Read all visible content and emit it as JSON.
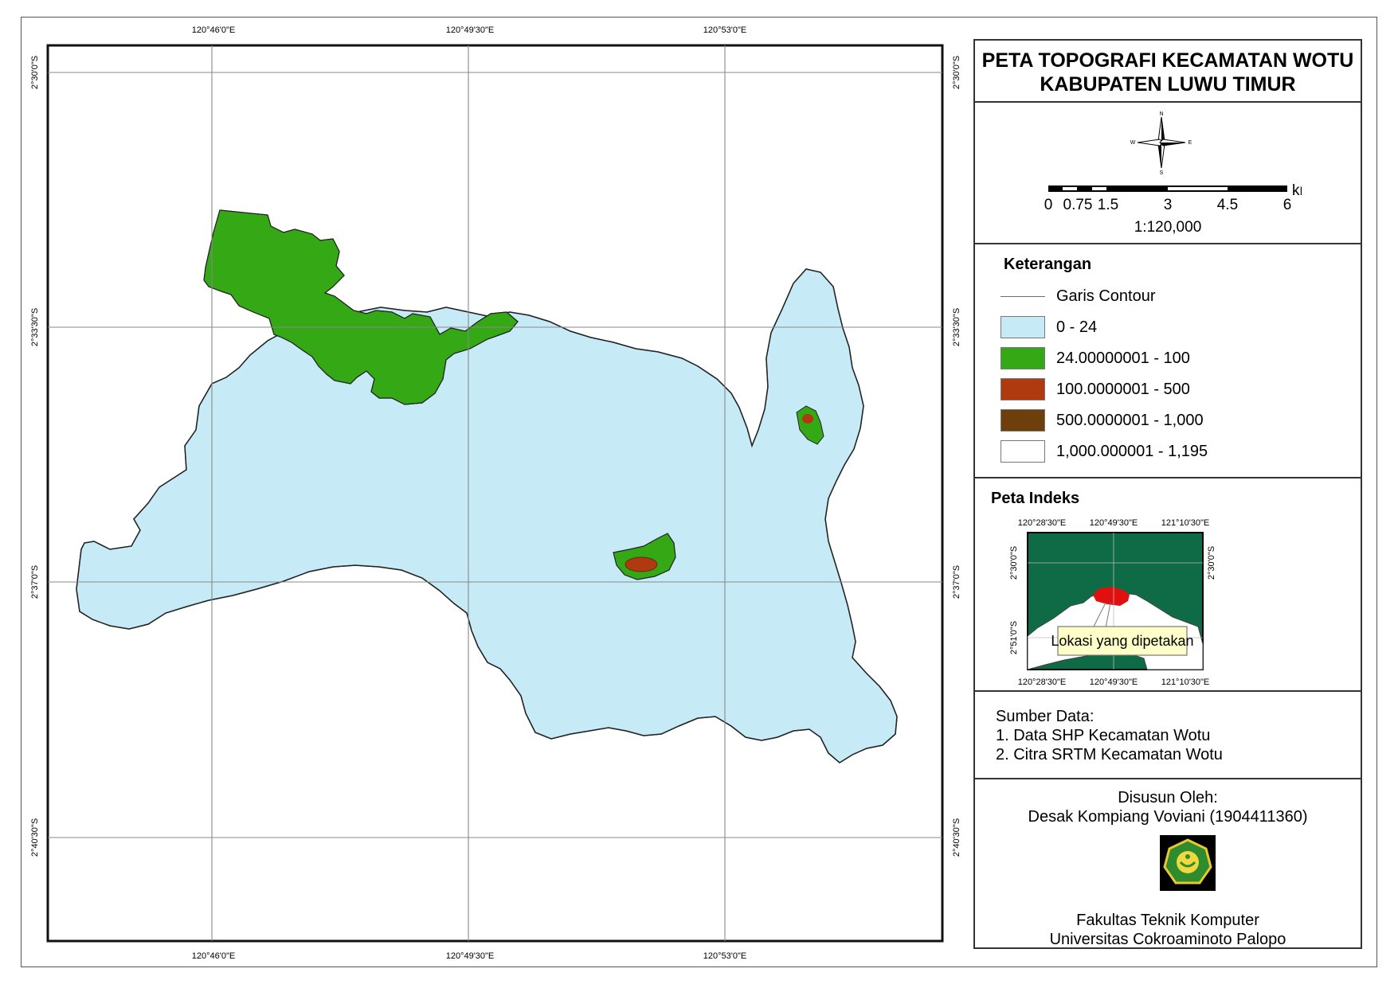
{
  "map": {
    "top_labels": [
      "120°46'0\"E",
      "120°49'30\"E",
      "120°53'0\"E"
    ],
    "bottom_labels": [
      "120°46'0\"E",
      "120°49'30\"E",
      "120°53'0\"E"
    ],
    "left_labels": [
      "2°30'0\"S",
      "2°33'30\"S",
      "2°37'0\"S",
      "2°40'30\"S"
    ],
    "right_labels": [
      "2°30'0\"S",
      "2°33'30\"S",
      "2°37'0\"S",
      "2°40'30\"S"
    ],
    "colors": {
      "lowland": "#c6ebf7",
      "green": "#35a815",
      "red": "#b03a10",
      "contour": "#6b6b78",
      "labels": "#f4f4a6"
    }
  },
  "panel": {
    "title_line1": "PETA TOPOGRAFI KECAMATAN WOTU",
    "title_line2": "KABUPATEN LUWU TIMUR",
    "north_arrow": {
      "icon": "compass-rose-icon",
      "n": "N",
      "s": "S",
      "e": "E",
      "w": "W"
    },
    "scale": {
      "unit": "km",
      "ticks": [
        "0",
        "0.75",
        "1.5",
        "3",
        "4.5",
        "6"
      ],
      "ratio": "1:120,000"
    },
    "legend": {
      "heading": "Keterangan",
      "contour_label": "Garis Contour",
      "classes": [
        {
          "label": "0 - 24",
          "color": "#c6ebf7"
        },
        {
          "label": "24.00000001 - 100",
          "color": "#35a815"
        },
        {
          "label": "100.0000001 - 500",
          "color": "#b03a10"
        },
        {
          "label": "500.0000001 - 1,000",
          "color": "#6e3f0b"
        },
        {
          "label": "1,000.000001 - 1,195",
          "color": "#ffffff"
        }
      ]
    },
    "index": {
      "heading": "Peta Indeks",
      "top_labels": [
        "120°28'30\"E",
        "120°49'30\"E",
        "121°10'30\"E"
      ],
      "bottom_labels": [
        "120°28'30\"E",
        "120°49'30\"E",
        "121°10'30\"E"
      ],
      "left_labels": [
        "2°30'0\"S",
        "2°51'0\"S"
      ],
      "right_labels": [
        "2°30'0\"S"
      ],
      "callout": "Lokasi yang dipetakan"
    },
    "source": {
      "heading": "Sumber  Data:",
      "items": [
        "1. Data SHP Kecamatan Wotu",
        "2. Citra SRTM Kecamatan Wotu"
      ]
    },
    "author": {
      "heading": "Disusun Oleh:",
      "name": "Desak Kompiang Voviani (1904411360)",
      "logo": "university-seal-icon",
      "faculty": "Fakultas Teknik Komputer",
      "university": "Universitas Cokroaminoto Palopo"
    }
  }
}
